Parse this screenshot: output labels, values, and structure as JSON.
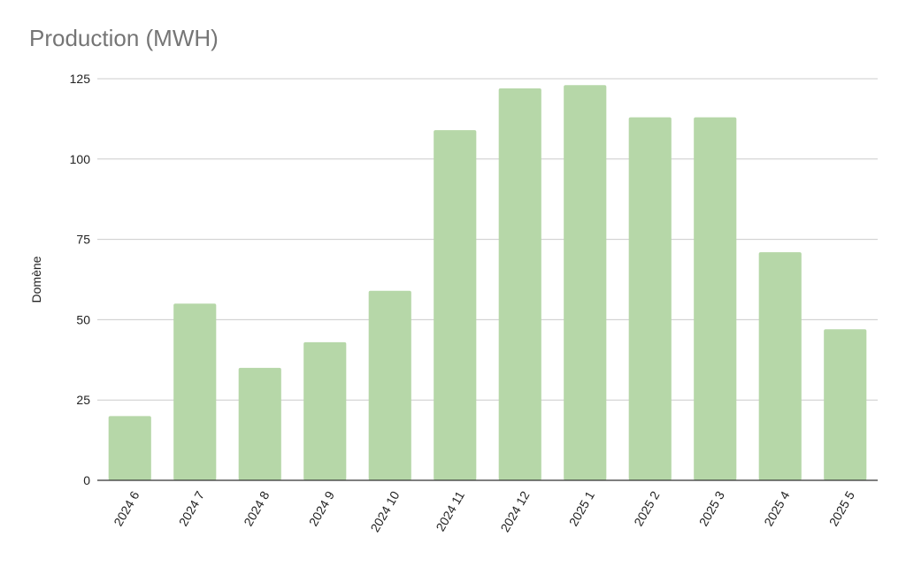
{
  "chart_data": {
    "type": "bar",
    "title": "Production (MWH)",
    "ylabel": "Domène",
    "xlabel": "",
    "categories": [
      "2024 6",
      "2024 7",
      "2024 8",
      "2024 9",
      "2024 10",
      "2024 11",
      "2024 12",
      "2025 1",
      "2025 2",
      "2025 3",
      "2025 4",
      "2025 5"
    ],
    "values": [
      20,
      55,
      35,
      43,
      59,
      109,
      122,
      123,
      113,
      113,
      71,
      47
    ],
    "ylim": [
      0,
      125
    ],
    "yticks": [
      "0",
      "25",
      "50",
      "75",
      "100",
      "125"
    ],
    "grid": true,
    "bar_color": "#b6d7a8",
    "grid_color": "#cccccc",
    "axis_color": "#333333"
  }
}
